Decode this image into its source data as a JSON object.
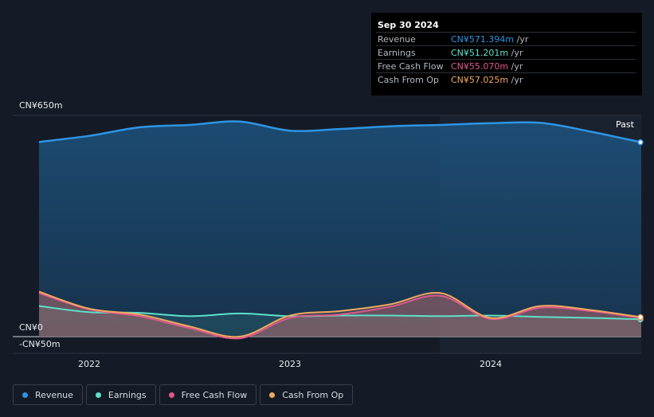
{
  "tooltip": {
    "date": "Sep 30 2024",
    "rows": [
      {
        "label": "Revenue",
        "value": "CN¥571.394m",
        "unit": "/yr",
        "color": "#2d95e5"
      },
      {
        "label": "Earnings",
        "value": "CN¥51.201m",
        "unit": "/yr",
        "color": "#5ee0c9"
      },
      {
        "label": "Free Cash Flow",
        "value": "CN¥55.070m",
        "unit": "/yr",
        "color": "#e0588d"
      },
      {
        "label": "Cash From Op",
        "value": "CN¥57.025m",
        "unit": "/yr",
        "color": "#f0a860"
      }
    ]
  },
  "past_label": "Past",
  "legend": [
    {
      "label": "Revenue",
      "color": "#2d95e5"
    },
    {
      "label": "Earnings",
      "color": "#5ee0c9"
    },
    {
      "label": "Free Cash Flow",
      "color": "#e0588d"
    },
    {
      "label": "Cash From Op",
      "color": "#f0a860"
    }
  ],
  "chart_data": {
    "type": "area",
    "y_tick_labels": [
      "CN¥650m",
      "CN¥0",
      "-CN¥50m"
    ],
    "x_tick_labels": [
      "2022",
      "2023",
      "2024"
    ],
    "ylim": [
      -50,
      650
    ],
    "xlim": [
      2021.75,
      2024.75
    ],
    "x": [
      2021.75,
      2022.0,
      2022.25,
      2022.5,
      2022.75,
      2023.0,
      2023.25,
      2023.5,
      2023.75,
      2024.0,
      2024.25,
      2024.5,
      2024.75
    ],
    "series": [
      {
        "name": "Revenue",
        "color": "#2d95e5",
        "values": [
          572,
          590,
          615,
          622,
          632,
          605,
          610,
          618,
          622,
          627,
          628,
          602,
          571
        ]
      },
      {
        "name": "Earnings",
        "color": "#5ee0c9",
        "values": [
          90,
          72,
          70,
          60,
          68,
          60,
          62,
          62,
          60,
          62,
          58,
          55,
          51
        ]
      },
      {
        "name": "Free Cash Flow",
        "color": "#e0588d",
        "values": [
          128,
          80,
          60,
          25,
          -5,
          55,
          65,
          88,
          120,
          52,
          85,
          75,
          55
        ]
      },
      {
        "name": "Cash From Op",
        "color": "#f0a860",
        "values": [
          132,
          82,
          65,
          30,
          0,
          62,
          75,
          95,
          128,
          55,
          90,
          78,
          57
        ]
      }
    ]
  }
}
